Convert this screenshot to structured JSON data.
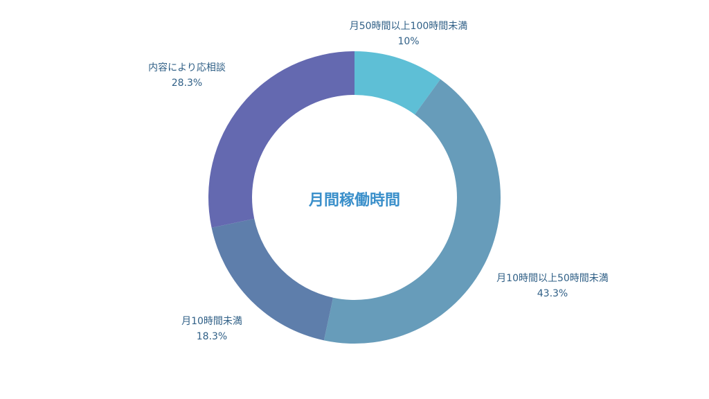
{
  "chart_data": {
    "type": "pie",
    "subtype": "donut",
    "center_title": "月間稼働時間",
    "legend": "none",
    "categories": [
      "月50時間以上100時間未満",
      "月10時間以上50時間未満",
      "月10時間未満",
      "内容により応相談"
    ],
    "values": [
      10,
      43.3,
      18.3,
      28.3
    ],
    "value_labels": [
      "10%",
      "43.3%",
      "18.3%",
      "28.3%"
    ],
    "colors": [
      "#5ebfd6",
      "#679cba",
      "#5e7eab",
      "#6469b0"
    ],
    "label_color": "#2f5f86",
    "title_color": "#3a8fca"
  }
}
